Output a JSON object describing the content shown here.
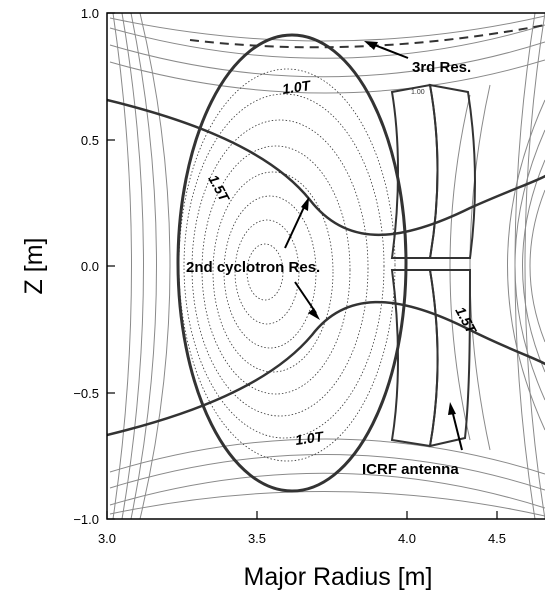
{
  "axes": {
    "xlabel": "Major Radius [m]",
    "ylabel": "Z [m]",
    "x_ticks": [
      "3.0",
      "3.5",
      "4.0",
      "4.5"
    ],
    "y_ticks": [
      "1.0",
      "0.5",
      "0.0",
      "−0.5",
      "−1.0"
    ]
  },
  "annotations": {
    "third_res": "3rd Res.",
    "second_res": "2nd cyclotron Res.",
    "icrf": "ICRF antenna"
  },
  "field_labels": {
    "b10_top": "1.0T",
    "b10_bottom": "1.0T",
    "b15_left": "1.5T",
    "b15_right": "1.5T",
    "b100_small": "1.00"
  }
}
